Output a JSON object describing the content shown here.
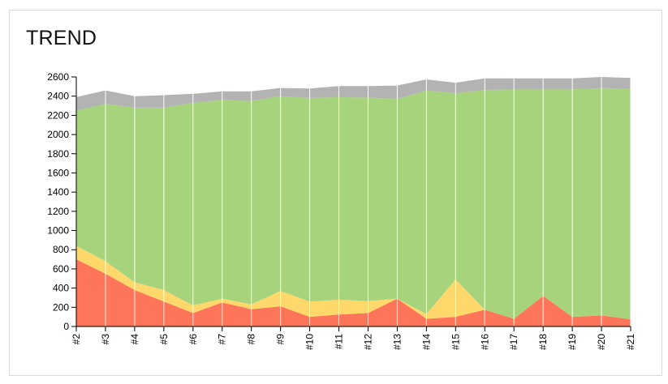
{
  "title": "TREND",
  "chart_data": {
    "type": "area",
    "stacked": true,
    "categories": [
      "#2",
      "#3",
      "#4",
      "#5",
      "#6",
      "#7",
      "#8",
      "#9",
      "#10",
      "#11",
      "#12",
      "#13",
      "#14",
      "#15",
      "#16",
      "#17",
      "#18",
      "#19",
      "#20",
      "#21"
    ],
    "ylim": [
      0,
      2600
    ],
    "yticks": [
      0,
      200,
      400,
      600,
      800,
      1000,
      1200,
      1400,
      1600,
      1800,
      2000,
      2200,
      2400,
      2600
    ],
    "grid": "vertical",
    "legend": "none",
    "series": [
      {
        "color": "#ff7559",
        "values": [
          700,
          550,
          380,
          260,
          140,
          250,
          180,
          210,
          100,
          125,
          140,
          290,
          80,
          100,
          175,
          80,
          320,
          100,
          115,
          75
        ]
      },
      {
        "color": "#ffd86b",
        "values": [
          140,
          130,
          80,
          120,
          80,
          40,
          50,
          160,
          160,
          155,
          125,
          0,
          50,
          390,
          0,
          0,
          0,
          0,
          0,
          0
        ]
      },
      {
        "color": "#a7d37d",
        "values": [
          1410,
          1640,
          1820,
          1900,
          2110,
          2070,
          2120,
          2030,
          2120,
          2110,
          2120,
          2080,
          2330,
          1940,
          2290,
          2390,
          2150,
          2370,
          2370,
          2400
        ]
      },
      {
        "color": "#b3b3b3",
        "values": [
          140,
          140,
          120,
          130,
          95,
          90,
          100,
          85,
          100,
          115,
          120,
          140,
          115,
          110,
          120,
          115,
          115,
          115,
          115,
          115
        ]
      }
    ]
  }
}
